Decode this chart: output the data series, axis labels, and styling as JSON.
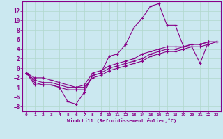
{
  "xlabel": "Windchill (Refroidissement éolien,°C)",
  "bg_color": "#cbe8f0",
  "grid_color": "#b0d8cc",
  "line_color": "#880088",
  "spine_color": "#880088",
  "xlim": [
    -0.5,
    23.5
  ],
  "ylim": [
    -9,
    14
  ],
  "xticks": [
    0,
    1,
    2,
    3,
    4,
    5,
    6,
    7,
    8,
    9,
    10,
    11,
    12,
    13,
    14,
    15,
    16,
    17,
    18,
    19,
    20,
    21,
    22,
    23
  ],
  "yticks": [
    -8,
    -6,
    -4,
    -2,
    0,
    2,
    4,
    6,
    8,
    10,
    12
  ],
  "series": [
    {
      "x": [
        0,
        1,
        2,
        3,
        4,
        5,
        6,
        7,
        8,
        9,
        10,
        11,
        12,
        13,
        14,
        15,
        16,
        17,
        18,
        19,
        20,
        21,
        22,
        23
      ],
      "y": [
        -1,
        -3.5,
        -3.5,
        -3.5,
        -4,
        -7,
        -7.5,
        -5,
        -1.5,
        -1,
        2.5,
        3,
        5,
        8.5,
        10.5,
        13,
        13.5,
        9,
        9,
        4.5,
        4.5,
        1,
        5.5,
        5.5
      ]
    },
    {
      "x": [
        0,
        1,
        2,
        3,
        4,
        5,
        6,
        7,
        8,
        9,
        10,
        11,
        12,
        13,
        14,
        15,
        16,
        17,
        18,
        19,
        20,
        21,
        22,
        23
      ],
      "y": [
        -1,
        -2,
        -2,
        -2.5,
        -3,
        -3.5,
        -4,
        -3.5,
        -1,
        -0.5,
        0.5,
        1,
        1.5,
        2,
        3,
        3.5,
        4,
        4.5,
        4.5,
        4.5,
        5,
        5,
        5.5,
        5.5
      ]
    },
    {
      "x": [
        0,
        1,
        2,
        3,
        4,
        5,
        6,
        7,
        8,
        9,
        10,
        11,
        12,
        13,
        14,
        15,
        16,
        17,
        18,
        19,
        20,
        21,
        22,
        23
      ],
      "y": [
        -1,
        -2.5,
        -3,
        -3,
        -3.5,
        -4,
        -4,
        -4,
        -2,
        -1.5,
        -0.5,
        0,
        0.5,
        1,
        1.5,
        2.5,
        3,
        3.5,
        3.5,
        4,
        4.5,
        4.5,
        5,
        5.5
      ]
    },
    {
      "x": [
        0,
        1,
        2,
        3,
        4,
        5,
        6,
        7,
        8,
        9,
        10,
        11,
        12,
        13,
        14,
        15,
        16,
        17,
        18,
        19,
        20,
        21,
        22,
        23
      ],
      "y": [
        -1,
        -3,
        -3.5,
        -3.5,
        -4,
        -4.5,
        -4.5,
        -4.5,
        -1.5,
        -1,
        0,
        0.5,
        1,
        1.5,
        2,
        3,
        3.5,
        4,
        4,
        4.5,
        5,
        5,
        5.5,
        5.5
      ]
    }
  ]
}
